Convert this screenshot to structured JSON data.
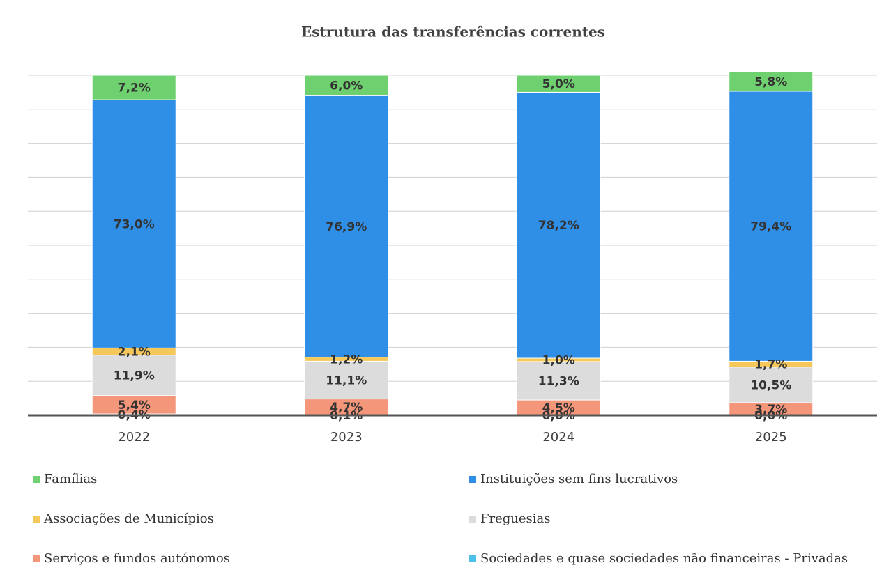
{
  "chart_data": {
    "type": "stacked_bar",
    "title": "Estrutura das transferências correntes",
    "categories": [
      "2022",
      "2023",
      "2024",
      "2025"
    ],
    "series": [
      {
        "name": "Famílias",
        "color": "#6fd06f",
        "values": [
          7.2,
          6.0,
          5.0,
          5.8
        ],
        "value_labels": [
          "7,2%",
          "6,0%",
          "5,0%",
          "5,8%"
        ]
      },
      {
        "name": "Instituições sem fins lucrativos",
        "color": "#2f8fe6",
        "values": [
          73.0,
          76.9,
          78.2,
          79.4
        ],
        "value_labels": [
          "73,0%",
          "76,9%",
          "78,2%",
          "79,4%"
        ]
      },
      {
        "name": "Associações de Municípios",
        "color": "#f6c85a",
        "values": [
          2.1,
          1.2,
          1.0,
          1.7
        ],
        "value_labels": [
          "2,1%",
          "1,2%",
          "1,0%",
          "1,7%"
        ]
      },
      {
        "name": "Freguesias",
        "color": "#dcdcdc",
        "values": [
          11.9,
          11.1,
          11.3,
          10.5
        ],
        "value_labels": [
          "11,9%",
          "11,1%",
          "11,3%",
          "10,5%"
        ]
      },
      {
        "name": "Serviços e fundos autónomos",
        "color": "#f4967a",
        "values": [
          5.4,
          4.7,
          4.5,
          3.7
        ],
        "value_labels": [
          "5,4%",
          "4,7%",
          "4,5%",
          "3,7%"
        ]
      },
      {
        "name": "Sociedades e quase sociedades não financeiras - Privadas",
        "color": "#4dc0ea",
        "values": [
          0.4,
          0.1,
          0.0,
          0.0
        ],
        "value_labels": [
          "0,4%",
          "0,1%",
          "0,0%",
          "0,0%"
        ]
      }
    ],
    "ylim": [
      0,
      100
    ],
    "yticks": [
      0,
      10,
      20,
      30,
      40,
      50,
      60,
      70,
      80,
      90,
      100
    ],
    "grid": true
  }
}
